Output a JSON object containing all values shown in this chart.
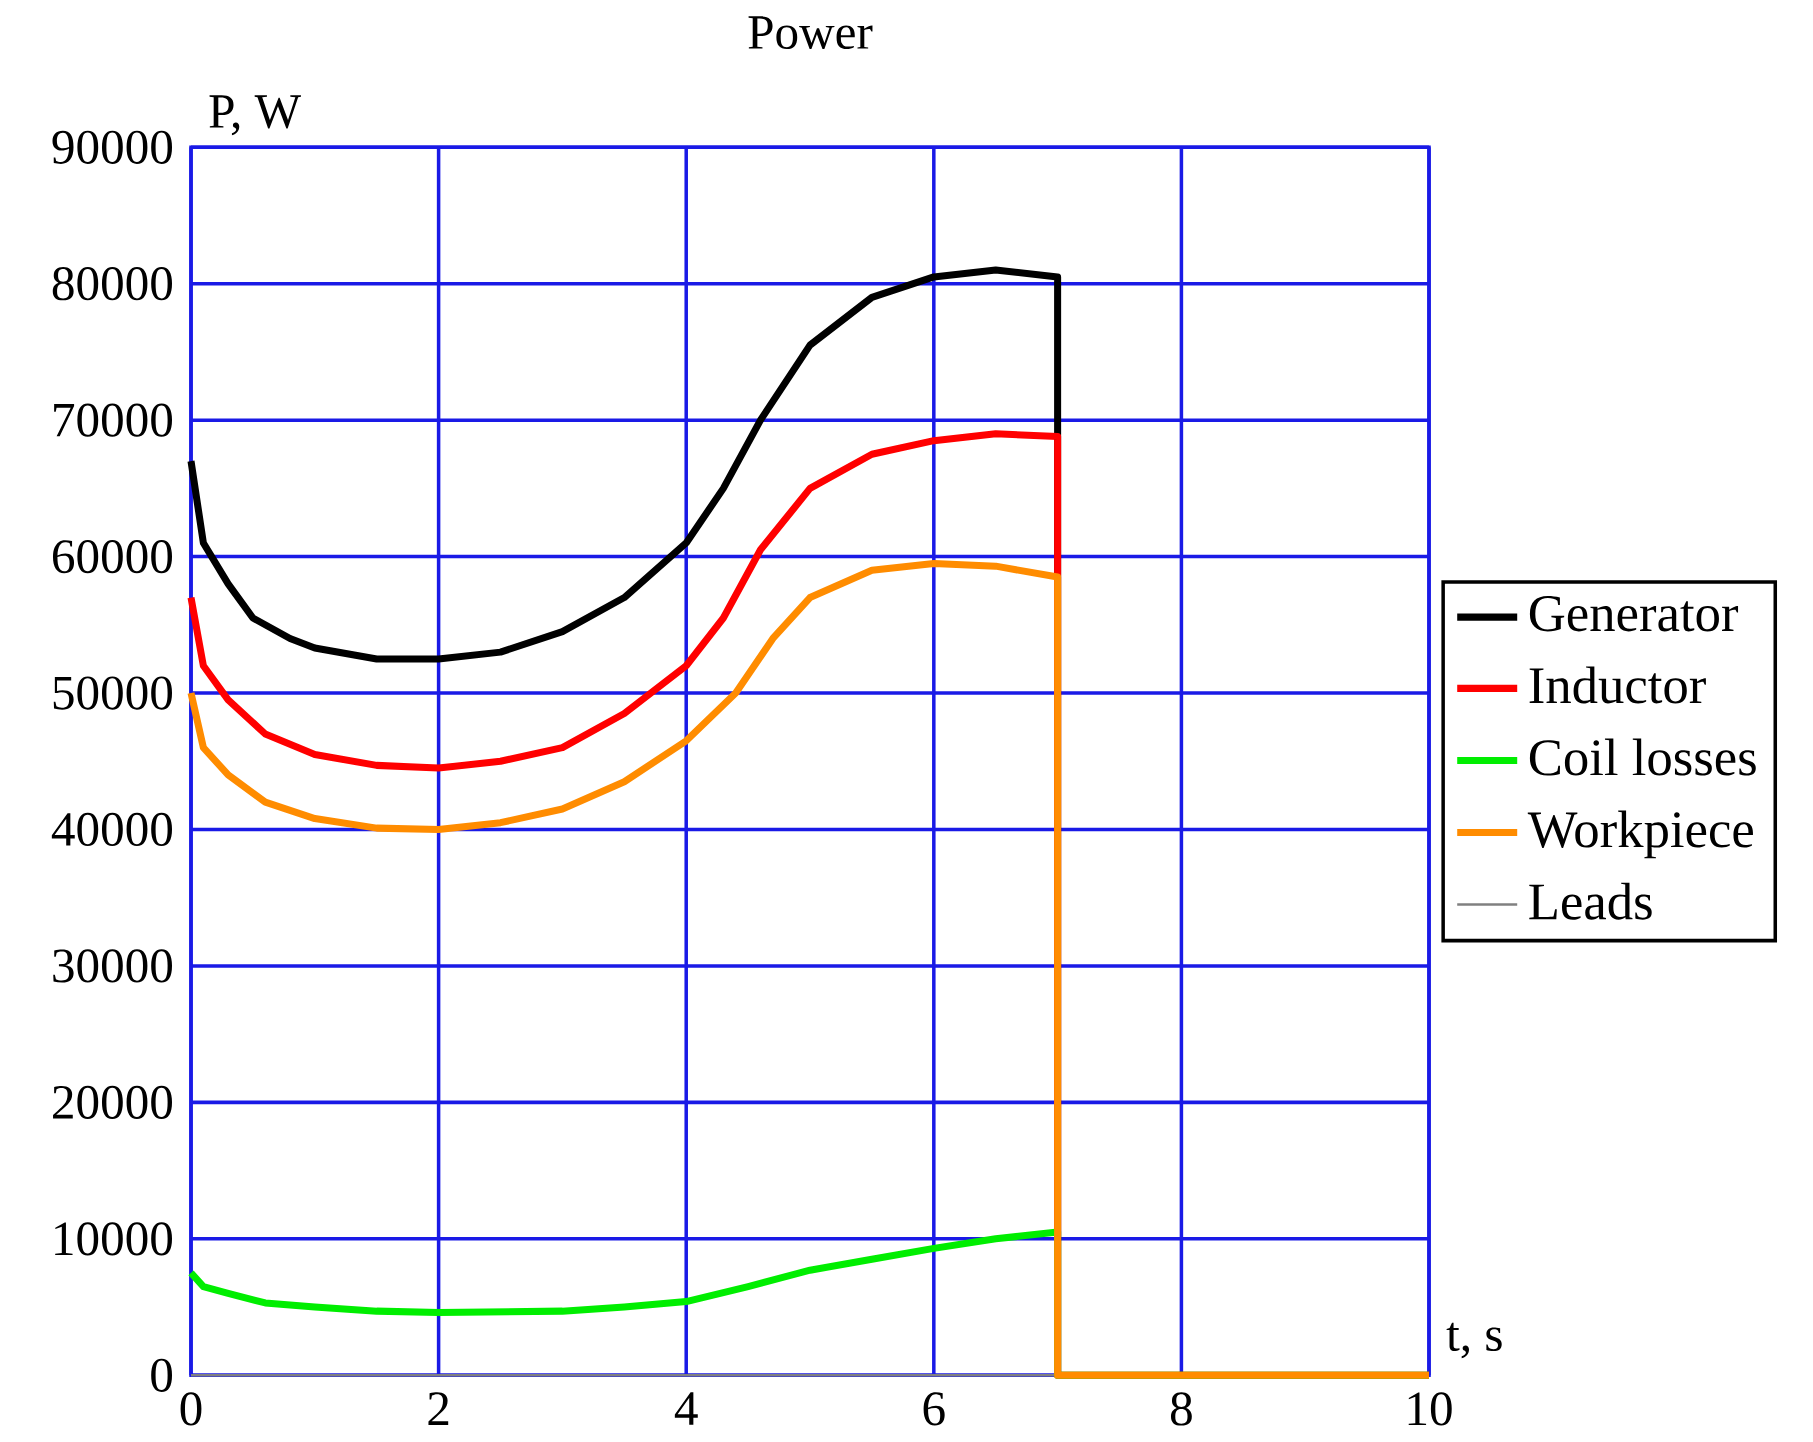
{
  "chart_data": {
    "type": "line",
    "title": "Power",
    "xlabel": "t, s",
    "ylabel": "P, W",
    "xlim": [
      0,
      10
    ],
    "ylim": [
      0,
      90000
    ],
    "xticks": [
      0,
      2,
      4,
      6,
      8,
      10
    ],
    "yticks": [
      0,
      10000,
      20000,
      30000,
      40000,
      50000,
      60000,
      70000,
      80000,
      90000
    ],
    "grid": true,
    "legend": "right",
    "marker": "none",
    "line_style": "solid",
    "series": [
      {
        "name": "Leads",
        "color": "#808080",
        "x": [
          0,
          10
        ],
        "values": [
          0,
          0
        ]
      },
      {
        "name": "Generator",
        "color": "#000000",
        "x": [
          0,
          0.1,
          0.3,
          0.5,
          0.8,
          1.0,
          1.5,
          2.0,
          2.5,
          3.0,
          3.5,
          4.0,
          4.3,
          4.6,
          5.0,
          5.5,
          6.0,
          6.5,
          7.0,
          7.0
        ],
        "values": [
          67000,
          61000,
          58000,
          55500,
          54000,
          53300,
          52500,
          52500,
          53000,
          54500,
          57000,
          61000,
          65000,
          70000,
          75500,
          79000,
          80500,
          81000,
          80500,
          0
        ]
      },
      {
        "name": "Inductor",
        "color": "#ff0000",
        "x": [
          0,
          0.1,
          0.3,
          0.6,
          1.0,
          1.5,
          2.0,
          2.5,
          3.0,
          3.5,
          4.0,
          4.3,
          4.6,
          5.0,
          5.5,
          6.0,
          6.5,
          7.0,
          7.0,
          10
        ],
        "values": [
          57000,
          52000,
          49500,
          47000,
          45500,
          44700,
          44500,
          45000,
          46000,
          48500,
          52000,
          55500,
          60500,
          65000,
          67500,
          68500,
          69000,
          68800,
          0,
          0
        ]
      },
      {
        "name": "Coil losses",
        "color": "#00ee00",
        "x": [
          0,
          0.1,
          0.3,
          0.6,
          1.0,
          1.5,
          2.0,
          3.0,
          3.5,
          4.0,
          4.5,
          5.0,
          5.5,
          6.0,
          6.5,
          7.0,
          7.0,
          10
        ],
        "values": [
          7500,
          6500,
          6000,
          5300,
          5000,
          4700,
          4600,
          4700,
          5000,
          5400,
          6500,
          7700,
          8500,
          9300,
          10000,
          10500,
          0,
          0
        ]
      },
      {
        "name": "Workpiece",
        "color": "#ff8c00",
        "x": [
          0,
          0.1,
          0.3,
          0.6,
          1.0,
          1.5,
          2.0,
          2.5,
          3.0,
          3.5,
          4.0,
          4.4,
          4.7,
          5.0,
          5.5,
          6.0,
          6.5,
          7.0,
          7.0,
          10
        ],
        "values": [
          50000,
          46000,
          44000,
          42000,
          40800,
          40100,
          40000,
          40500,
          41500,
          43500,
          46500,
          50000,
          54000,
          57000,
          59000,
          59500,
          59300,
          58500,
          0,
          0
        ]
      }
    ]
  }
}
